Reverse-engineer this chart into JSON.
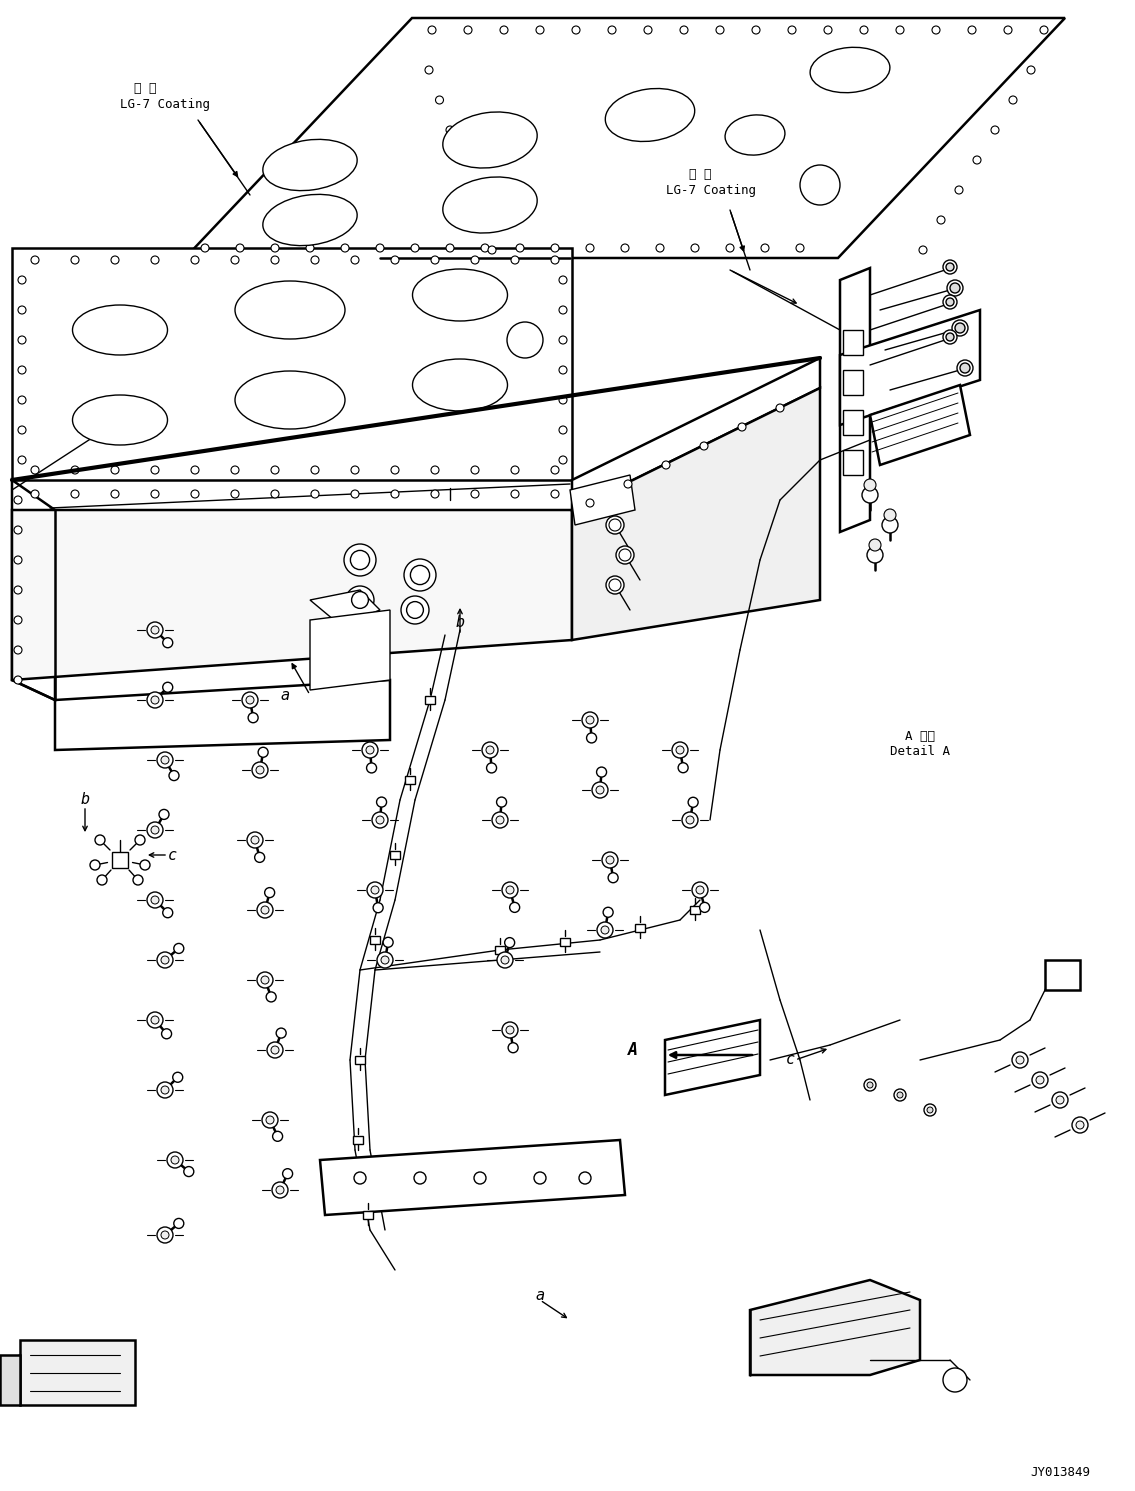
{
  "bg_color": "#ffffff",
  "line_color": "#000000",
  "fig_width": 11.35,
  "fig_height": 14.91,
  "dpi": 100,
  "label_lg7_1_line1": "塗 布",
  "label_lg7_1_line2": "LG-7 Coating",
  "label_lg7_2_line1": "塗 布",
  "label_lg7_2_line2": "LG-7 Coating",
  "label_detail": "A 詳細\nDetail A",
  "label_code": "JY013849",
  "lw": 1.0,
  "lw_thick": 1.8,
  "lw_bold": 3.0
}
